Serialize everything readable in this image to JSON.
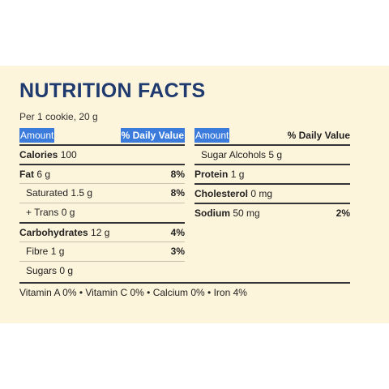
{
  "title": "NUTRITION FACTS",
  "serving": "Per 1 cookie, 20 g",
  "left_header": {
    "amount": "Amount",
    "daily_value": "% Daily Value"
  },
  "right_header": {
    "amount": "Amount",
    "daily_value": "% Daily Value"
  },
  "left_rows": [
    {
      "label": "Calories",
      "value": "100",
      "pct": ""
    },
    {
      "label": "Fat",
      "value": "6 g",
      "pct": "8%"
    },
    {
      "label": "Saturated",
      "value": "1.5 g",
      "pct": "8%"
    },
    {
      "label": "+ Trans",
      "value": "0 g",
      "pct": ""
    },
    {
      "label": "Carbohydrates",
      "value": "12 g",
      "pct": "4%"
    },
    {
      "label": "Fibre",
      "value": "1 g",
      "pct": "3%"
    },
    {
      "label": "Sugars",
      "value": "0 g",
      "pct": ""
    }
  ],
  "right_rows": [
    {
      "label": "Sugar Alcohols",
      "value": "5 g",
      "pct": ""
    },
    {
      "label": "Protein",
      "value": "1 g",
      "pct": ""
    },
    {
      "label": "Cholesterol",
      "value": "0 mg",
      "pct": ""
    },
    {
      "label": "Sodium",
      "value": "50 mg",
      "pct": "2%"
    }
  ],
  "footer": "Vitamin A 0% • Vitamin C 0% • Calcium 0% • Iron 4%",
  "colors": {
    "panel": "#fdf4dc",
    "title": "#1e3a6e",
    "highlight": "#3a7bdc"
  }
}
